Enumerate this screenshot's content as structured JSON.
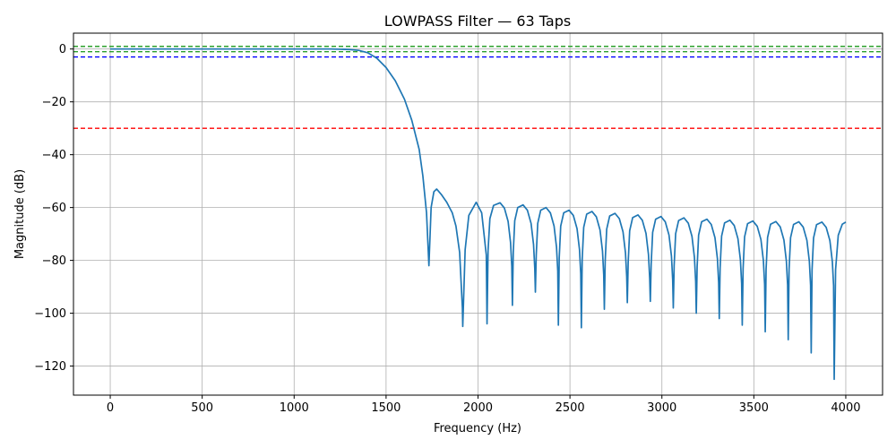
{
  "chart_data": {
    "type": "line",
    "title": "LOWPASS Filter — 63 Taps",
    "xlabel": "Frequency (Hz)",
    "ylabel": "Magnitude (dB)",
    "xlim": [
      -200,
      4200
    ],
    "ylim": [
      -131,
      6
    ],
    "xticks": [
      0,
      500,
      1000,
      1500,
      2000,
      2500,
      3000,
      3500,
      4000
    ],
    "xtick_labels": [
      "0",
      "500",
      "1000",
      "1500",
      "2000",
      "2500",
      "3000",
      "3500",
      "4000"
    ],
    "yticks": [
      0,
      -20,
      -40,
      -60,
      -80,
      -100,
      -120
    ],
    "ytick_labels": [
      "0",
      "−20",
      "−40",
      "−60",
      "−80",
      "−100",
      "−120"
    ],
    "grid": true,
    "reference_lines": [
      {
        "y": 1,
        "color": "#2ca02c",
        "style": "dashed"
      },
      {
        "y": -1,
        "color": "#2ca02c",
        "style": "dashed"
      },
      {
        "y": -3,
        "color": "#0000ff",
        "style": "dashed"
      },
      {
        "y": -30,
        "color": "#ff0000",
        "style": "dashed"
      }
    ],
    "series_color": "#1f77b4",
    "series": [
      {
        "x": [
          0,
          500,
          1000,
          1200,
          1300,
          1350,
          1400,
          1450,
          1500,
          1550,
          1600,
          1640,
          1680,
          1700,
          1720,
          1733,
          1745,
          1760,
          1775,
          1800,
          1830,
          1860,
          1880,
          1900,
          1915,
          1917,
          1930,
          1950,
          1990,
          2020,
          2045,
          2049
        ],
        "y": [
          0,
          0,
          0,
          0,
          -0.2,
          -0.5,
          -1.4,
          -3.5,
          -7,
          -12,
          -19,
          -27,
          -38,
          -48,
          -62,
          -82,
          -60,
          -54,
          -53,
          -55,
          -58,
          -62,
          -67,
          -77,
          -98,
          -105,
          -76,
          -63,
          -58,
          -62,
          -78,
          -104
        ]
      }
    ],
    "sidelobes": {
      "peaks_x": [
        2120,
        2245,
        2370,
        2495,
        2620,
        2745,
        2870,
        2995,
        3120,
        3245,
        3370,
        3495,
        3620,
        3745,
        3870
      ],
      "peaks_y": [
        -58.2,
        -59,
        -60,
        -61,
        -61.5,
        -62.2,
        -62.8,
        -63.4,
        -63.9,
        -64.4,
        -64.8,
        -65.1,
        -65.3,
        -65.4,
        -65.5
      ],
      "nulls_x": [
        2187,
        2312,
        2437,
        2562,
        2687,
        2812,
        2937,
        3062,
        3187,
        3312,
        3437,
        3562,
        3687,
        3812,
        3937
      ],
      "nulls_y": [
        -97,
        -92,
        -104.5,
        -105.5,
        -98.5,
        -96,
        -95.5,
        -98,
        -100,
        -102,
        -104.5,
        -107,
        -110,
        -115,
        -125
      ],
      "end_x": 4000,
      "end_y": -65.5
    }
  }
}
